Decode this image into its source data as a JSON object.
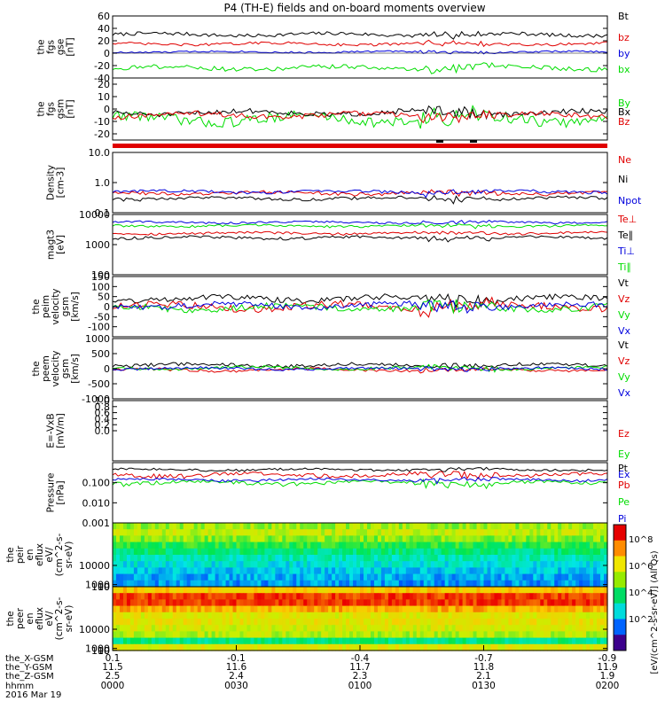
{
  "title": "P4 (TH-E) fields and on-board moments overview",
  "colors": {
    "black": "#000000",
    "red": "#e00000",
    "blue": "#0000dd",
    "green": "#00dd00"
  },
  "chart_data": [
    {
      "type": "line",
      "panel": "fgs_gse",
      "ylabel": [
        "the",
        "fgs",
        "gse",
        "[nT]"
      ],
      "ylim": [
        -40,
        60
      ],
      "yticks": [
        {
          "v": 60,
          "t": "60"
        },
        {
          "v": 40,
          "t": "40"
        },
        {
          "v": 20,
          "t": "20"
        },
        {
          "v": 0,
          "t": "0"
        },
        {
          "v": -20,
          "t": "-20"
        },
        {
          "v": -40,
          "t": "-40"
        }
      ],
      "series": [
        {
          "name": "Bt",
          "color": "#000000",
          "base": 30,
          "amp": 4
        },
        {
          "name": "bz",
          "color": "#e00000",
          "base": 15,
          "amp": 3
        },
        {
          "name": "by",
          "color": "#0000dd",
          "base": 2,
          "amp": 2
        },
        {
          "name": "bx",
          "color": "#00dd00",
          "base": -24,
          "amp": 5
        }
      ]
    },
    {
      "type": "line",
      "panel": "fgs_gsm",
      "ylabel": [
        "the",
        "fgs",
        "gsm",
        "[nT]"
      ],
      "ylim": [
        -25,
        25
      ],
      "yticks": [
        {
          "v": 20,
          "t": "20"
        },
        {
          "v": 10,
          "t": "10"
        },
        {
          "v": 0,
          "t": "0"
        },
        {
          "v": -10,
          "t": "-10"
        },
        {
          "v": -20,
          "t": "-20"
        }
      ],
      "series": [
        {
          "name": "By",
          "color": "#00dd00",
          "base": -8,
          "amp": 6
        },
        {
          "name": "Bx",
          "color": "#000000",
          "base": -3,
          "amp": 3
        },
        {
          "name": "Bz",
          "color": "#e00000",
          "base": -5,
          "amp": 3
        }
      ]
    },
    {
      "type": "line",
      "panel": "density",
      "scale": "log",
      "ylabel": [
        "Density",
        "[cm-3]"
      ],
      "ylim": [
        0.1,
        10
      ],
      "yticks": [
        {
          "v": 10,
          "t": "10.0"
        },
        {
          "v": 1,
          "t": "1.0"
        },
        {
          "v": 0.1,
          "t": "0.1"
        }
      ],
      "series": [
        {
          "name": "Ne",
          "color": "#e00000",
          "base": 0.45,
          "amp": 0.08
        },
        {
          "name": "Ni",
          "color": "#000000",
          "base": 0.3,
          "amp": 0.05
        },
        {
          "name": "Npot",
          "color": "#0000dd",
          "base": 0.5,
          "amp": 0.08
        }
      ]
    },
    {
      "type": "line",
      "panel": "temperature",
      "scale": "log",
      "ylabel": [
        "magt3",
        "[eV]"
      ],
      "ylim": [
        100,
        10000
      ],
      "yticks": [
        {
          "v": 10000,
          "t": "10000"
        },
        {
          "v": 1000,
          "t": "1000"
        },
        {
          "v": 100,
          "t": "100"
        }
      ],
      "series": [
        {
          "name": "Te⊥",
          "color": "#e00000",
          "base": 2400,
          "amp": 300
        },
        {
          "name": "Te∥",
          "color": "#000000",
          "base": 1700,
          "amp": 250
        },
        {
          "name": "Ti⊥",
          "color": "#0000dd",
          "base": 5500,
          "amp": 600
        },
        {
          "name": "Ti∥",
          "color": "#00dd00",
          "base": 4200,
          "amp": 500
        }
      ]
    },
    {
      "type": "line",
      "panel": "peim_velocity",
      "ylabel": [
        "the",
        "peim",
        "velocity",
        "gsm",
        "[km/s]"
      ],
      "ylim": [
        -150,
        150
      ],
      "yticks": [
        {
          "v": 150,
          "t": "150"
        },
        {
          "v": 100,
          "t": "100"
        },
        {
          "v": 50,
          "t": "50"
        },
        {
          "v": 0,
          "t": "0"
        },
        {
          "v": -50,
          "t": "-50"
        },
        {
          "v": -100,
          "t": "-100"
        }
      ],
      "series": [
        {
          "name": "Vt",
          "color": "#000000",
          "base": 40,
          "amp": 20
        },
        {
          "name": "Vz",
          "color": "#e00000",
          "base": 0,
          "amp": 25
        },
        {
          "name": "Vy",
          "color": "#00dd00",
          "base": -5,
          "amp": 22
        },
        {
          "name": "Vx",
          "color": "#0000dd",
          "base": 5,
          "amp": 20
        }
      ]
    },
    {
      "type": "line",
      "panel": "peem_velocity",
      "ylabel": [
        "the",
        "peem",
        "velocity",
        "gsm",
        "[km/s]"
      ],
      "ylim": [
        -1000,
        1000
      ],
      "yticks": [
        {
          "v": 1000,
          "t": "1000"
        },
        {
          "v": 500,
          "t": "500"
        },
        {
          "v": 0,
          "t": "0"
        },
        {
          "v": -500,
          "t": "-500"
        },
        {
          "v": -1000,
          "t": "-1000"
        }
      ],
      "series": [
        {
          "name": "Vt",
          "color": "#000000",
          "base": 120,
          "amp": 80
        },
        {
          "name": "Vz",
          "color": "#e00000",
          "base": -40,
          "amp": 70
        },
        {
          "name": "Vy",
          "color": "#00dd00",
          "base": 20,
          "amp": 70
        },
        {
          "name": "Vx",
          "color": "#0000dd",
          "base": 0,
          "amp": 60
        }
      ]
    },
    {
      "type": "line",
      "panel": "efield",
      "ylabel": [
        "E=-VxB",
        "[mV/m]"
      ],
      "ylim": [
        -1,
        1
      ],
      "yticks": [
        {
          "v": 1.0,
          "t": "1.0"
        },
        {
          "v": 0.8,
          "t": "0.8"
        },
        {
          "v": 0.6,
          "t": "0.6"
        },
        {
          "v": 0.4,
          "t": "0.4"
        },
        {
          "v": 0.2,
          "t": "0.2"
        },
        {
          "v": 0.0,
          "t": "0.0"
        }
      ],
      "series": [
        {
          "name": "Ez",
          "color": "#e00000"
        },
        {
          "name": "Ey",
          "color": "#00dd00"
        },
        {
          "name": "Ex",
          "color": "#0000dd"
        }
      ]
    },
    {
      "type": "line",
      "panel": "pressure",
      "scale": "log",
      "ylabel": [
        "Pressure",
        "[nPa]"
      ],
      "ylim": [
        0.001,
        1
      ],
      "yticks": [
        {
          "v": 0.1,
          "t": "0.100"
        },
        {
          "v": 0.01,
          "t": "0.010"
        },
        {
          "v": 0.001,
          "t": "0.001"
        }
      ],
      "series": [
        {
          "name": "Pt",
          "color": "#000000",
          "base": 0.45,
          "amp": 0.08
        },
        {
          "name": "Pb",
          "color": "#e00000",
          "base": 0.25,
          "amp": 0.08
        },
        {
          "name": "Pe",
          "color": "#00dd00",
          "base": 0.1,
          "amp": 0.03
        },
        {
          "name": "Pi",
          "color": "#0000dd",
          "base": 0.14,
          "amp": 0.03
        }
      ]
    },
    {
      "type": "heatmap",
      "panel": "peir_flux",
      "ylabel": [
        "the",
        "peir",
        "en",
        "eflux",
        "eV/",
        "(cm^2-s-",
        "sr-eV)"
      ],
      "ylim": [
        5,
        30000
      ],
      "yticks": [
        {
          "v": 10000,
          "t": "10000"
        },
        {
          "v": 1000,
          "t": "1000"
        },
        {
          "v": 100,
          "t": "100"
        },
        {
          "v": 10,
          "t": "10"
        }
      ],
      "rows_top_to_bottom": [
        0.62,
        0.66,
        0.6,
        0.52,
        0.46,
        0.4,
        0.36,
        0.33,
        0.3,
        0.28
      ]
    },
    {
      "type": "heatmap",
      "panel": "peer_flux",
      "ylabel": [
        "the",
        "peer",
        "en",
        "eflux",
        "eV/",
        "(cm^2-s-",
        "sr-eV)"
      ],
      "ylim": [
        5,
        30000
      ],
      "yticks": [
        {
          "v": 10000,
          "t": "10000"
        },
        {
          "v": 1000,
          "t": "1000"
        },
        {
          "v": 100,
          "t": "100"
        },
        {
          "v": 10,
          "t": "10"
        }
      ],
      "rows_top_to_bottom": [
        0.78,
        0.94,
        0.95,
        0.82,
        0.7,
        0.72,
        0.68,
        0.64,
        0.45,
        0.7
      ]
    }
  ],
  "legend_labels": [
    [
      "Bt",
      "bz",
      "by",
      "bx"
    ],
    [
      "By",
      "Bx",
      "Bz"
    ],
    [
      "Ne",
      "Ni",
      "Npot"
    ],
    [
      "Te⊥",
      "Te∥",
      "Ti⊥",
      "Ti∥"
    ],
    [
      "Vt",
      "Vz",
      "Vy",
      "Vx"
    ],
    [
      "Vt",
      "Vz",
      "Vy",
      "Vx"
    ],
    [
      "Ez",
      "Ey",
      "Ex"
    ],
    [
      "Pt",
      "Pb",
      "Pe",
      "Pi"
    ]
  ],
  "colorbar": {
    "label": "[eV/(cm^2-s-sr-eV)] (All Qs)",
    "ticks": [
      "10^8",
      "10^6",
      "10^4",
      "10^2"
    ]
  },
  "xaxis": {
    "row_labels": [
      "the_X-GSM",
      "the_Y-GSM",
      "the_Z-GSM",
      "hhmm",
      "2016 Mar 19"
    ],
    "columns": [
      {
        "x": "0.1",
        "y": "11.5",
        "z": "2.5",
        "t": "0000"
      },
      {
        "x": "-0.1",
        "y": "11.6",
        "z": "2.4",
        "t": "0030"
      },
      {
        "x": "-0.4",
        "y": "11.7",
        "z": "2.3",
        "t": "0100"
      },
      {
        "x": "-0.7",
        "y": "11.8",
        "z": "2.1",
        "t": "0130"
      },
      {
        "x": "-0.9",
        "y": "11.9",
        "z": "1.9",
        "t": "0200"
      }
    ]
  }
}
